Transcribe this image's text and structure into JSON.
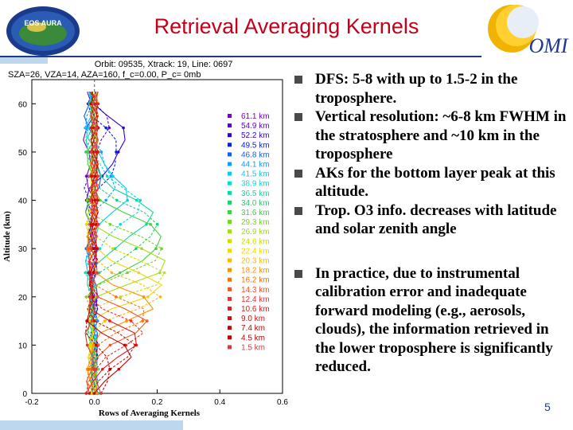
{
  "title": "Retrieval Averaging Kernels",
  "logos": {
    "left": "EOS AURA",
    "right": "OMI"
  },
  "chart_data": {
    "type": "line",
    "header": [
      "Orbit: 09535, Xtrack: 19, Line: 0697",
      "SZA=26, VZA=14, AZA=160, f_c=0.00, P_c=   0mb"
    ],
    "xlabel": "Rows of Averaging Kernels",
    "ylabel": "Altitude (km)",
    "xlim": [
      -0.2,
      0.6
    ],
    "ylim": [
      0,
      65
    ],
    "xticks": [
      "-0.2",
      "0.0",
      "0.2",
      "0.4",
      "0.6"
    ],
    "yticks": [
      "0",
      "10",
      "20",
      "30",
      "40",
      "50",
      "60"
    ],
    "legend": [
      "61.1 km",
      "54.9 km",
      "52.2 km",
      "49.5 km",
      "46.8 km",
      "44.1 km",
      "41.5 km",
      "38.9 km",
      "36.5 km",
      "34.0 km",
      "31.6 km",
      "29.3 km",
      "26.9 km",
      "24.6 km",
      "22.4 km",
      "20.3 km",
      "18.2 km",
      "16.2 km",
      "14.3 km",
      "12.4 km",
      "10.6 km",
      "9.0 km",
      "7.4 km",
      "4.5 km",
      "1.5 km"
    ],
    "series_peaks": [
      61.1,
      54.9,
      52.2,
      49.5,
      46.8,
      44.1,
      41.5,
      38.9,
      36.5,
      34.0,
      31.6,
      29.3,
      26.9,
      24.6,
      22.4,
      20.3,
      18.2,
      16.2,
      14.3,
      12.4,
      10.6,
      9.0,
      7.4,
      4.5,
      1.5
    ],
    "peak_values": [
      0.03,
      0.08,
      0.14,
      0.12,
      0.06,
      0.1,
      0.14,
      0.18,
      0.22,
      0.24,
      0.26,
      0.27,
      0.28,
      0.27,
      0.25,
      0.24,
      0.22,
      0.2,
      0.2,
      0.19,
      0.18,
      0.17,
      0.16,
      0.1,
      0.06
    ],
    "colors": [
      "#7a00cc",
      "#5a00d8",
      "#3000e0",
      "#0820e8",
      "#1060f0",
      "#10a0f8",
      "#10c8f0",
      "#10d8d0",
      "#10d8a0",
      "#20d070",
      "#40d040",
      "#70d820",
      "#a0e010",
      "#c8e000",
      "#f0d800",
      "#ffb800",
      "#ff9000",
      "#ff7000",
      "#ff5020",
      "#f03030",
      "#e02020",
      "#d01010",
      "#c00808",
      "#c00000",
      "#d04040"
    ]
  },
  "bullets": [
    "DFS: 5-8 with up to 1.5-2 in the troposphere.",
    "Vertical resolution: ~6-8 km FWHM in the stratosphere and ~10 km in the troposphere",
    "AKs for the bottom layer peak at this altitude.",
    "Trop. O3 info. decreases with latitude and solar zenith angle",
    "In practice, due to instrumental calibration error and inadequate forward modeling (e.g., aerosols, clouds), the information retrieved in the lower troposphere is significantly reduced."
  ],
  "page_number": "5"
}
